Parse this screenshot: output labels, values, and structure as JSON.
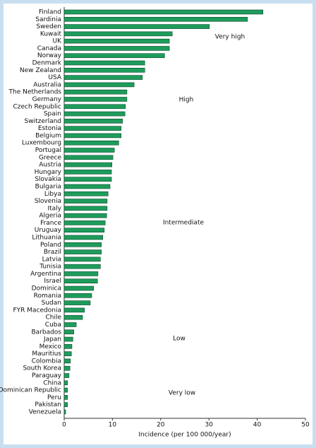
{
  "chart_data": {
    "type": "bar",
    "orientation": "horizontal",
    "categories": [
      "Finland",
      "Sardinia",
      "Sweden",
      "Kuwait",
      "UK",
      "Canada",
      "Norway",
      "Denmark",
      "New Zealand",
      "USA",
      "Australia",
      "The Netherlands",
      "Germany",
      "Czech Republic",
      "Spain",
      "Switzerland",
      "Estonia",
      "Belgium",
      "Luxembourg",
      "Portugal",
      "Greece",
      "Austria",
      "Hungary",
      "Slovakia",
      "Bulgaria",
      "Libya",
      "Slovenia",
      "Italy",
      "Algeria",
      "France",
      "Uruguay",
      "Lithuania",
      "Poland",
      "Brazil",
      "Latvia",
      "Tunisia",
      "Argentina",
      "Israel",
      "Dominica",
      "Romania",
      "Sudan",
      "FYR Macedonia",
      "Chile",
      "Cuba",
      "Barbados",
      "Japan",
      "Mexico",
      "Mauritius",
      "Colombia",
      "South Korea",
      "Paraguay",
      "China",
      "Dominican Republic",
      "Peru",
      "Pakistan",
      "Venezuela"
    ],
    "values": [
      41.2,
      38.0,
      30.1,
      22.4,
      21.8,
      21.8,
      20.8,
      16.7,
      16.7,
      16.2,
      14.5,
      13.0,
      13.0,
      12.7,
      12.6,
      12.1,
      11.8,
      11.8,
      11.3,
      10.4,
      10.1,
      9.9,
      9.8,
      9.8,
      9.5,
      9.1,
      8.9,
      8.9,
      8.8,
      8.5,
      8.3,
      8.0,
      7.7,
      7.7,
      7.5,
      7.5,
      7.0,
      6.9,
      6.1,
      5.7,
      5.4,
      4.2,
      3.8,
      2.5,
      2.0,
      1.8,
      1.6,
      1.5,
      1.3,
      1.2,
      1.0,
      0.7,
      0.7,
      0.7,
      0.7,
      0.3
    ],
    "color": "#1e9c5c",
    "xlabel": "Incidence (per 100 000/year)",
    "xlim": [
      0,
      50
    ],
    "xticks": [
      0,
      10,
      20,
      30,
      40,
      50
    ],
    "annotations": [
      "Very high",
      "High",
      "Intermediate",
      "Low",
      "Very low"
    ]
  }
}
